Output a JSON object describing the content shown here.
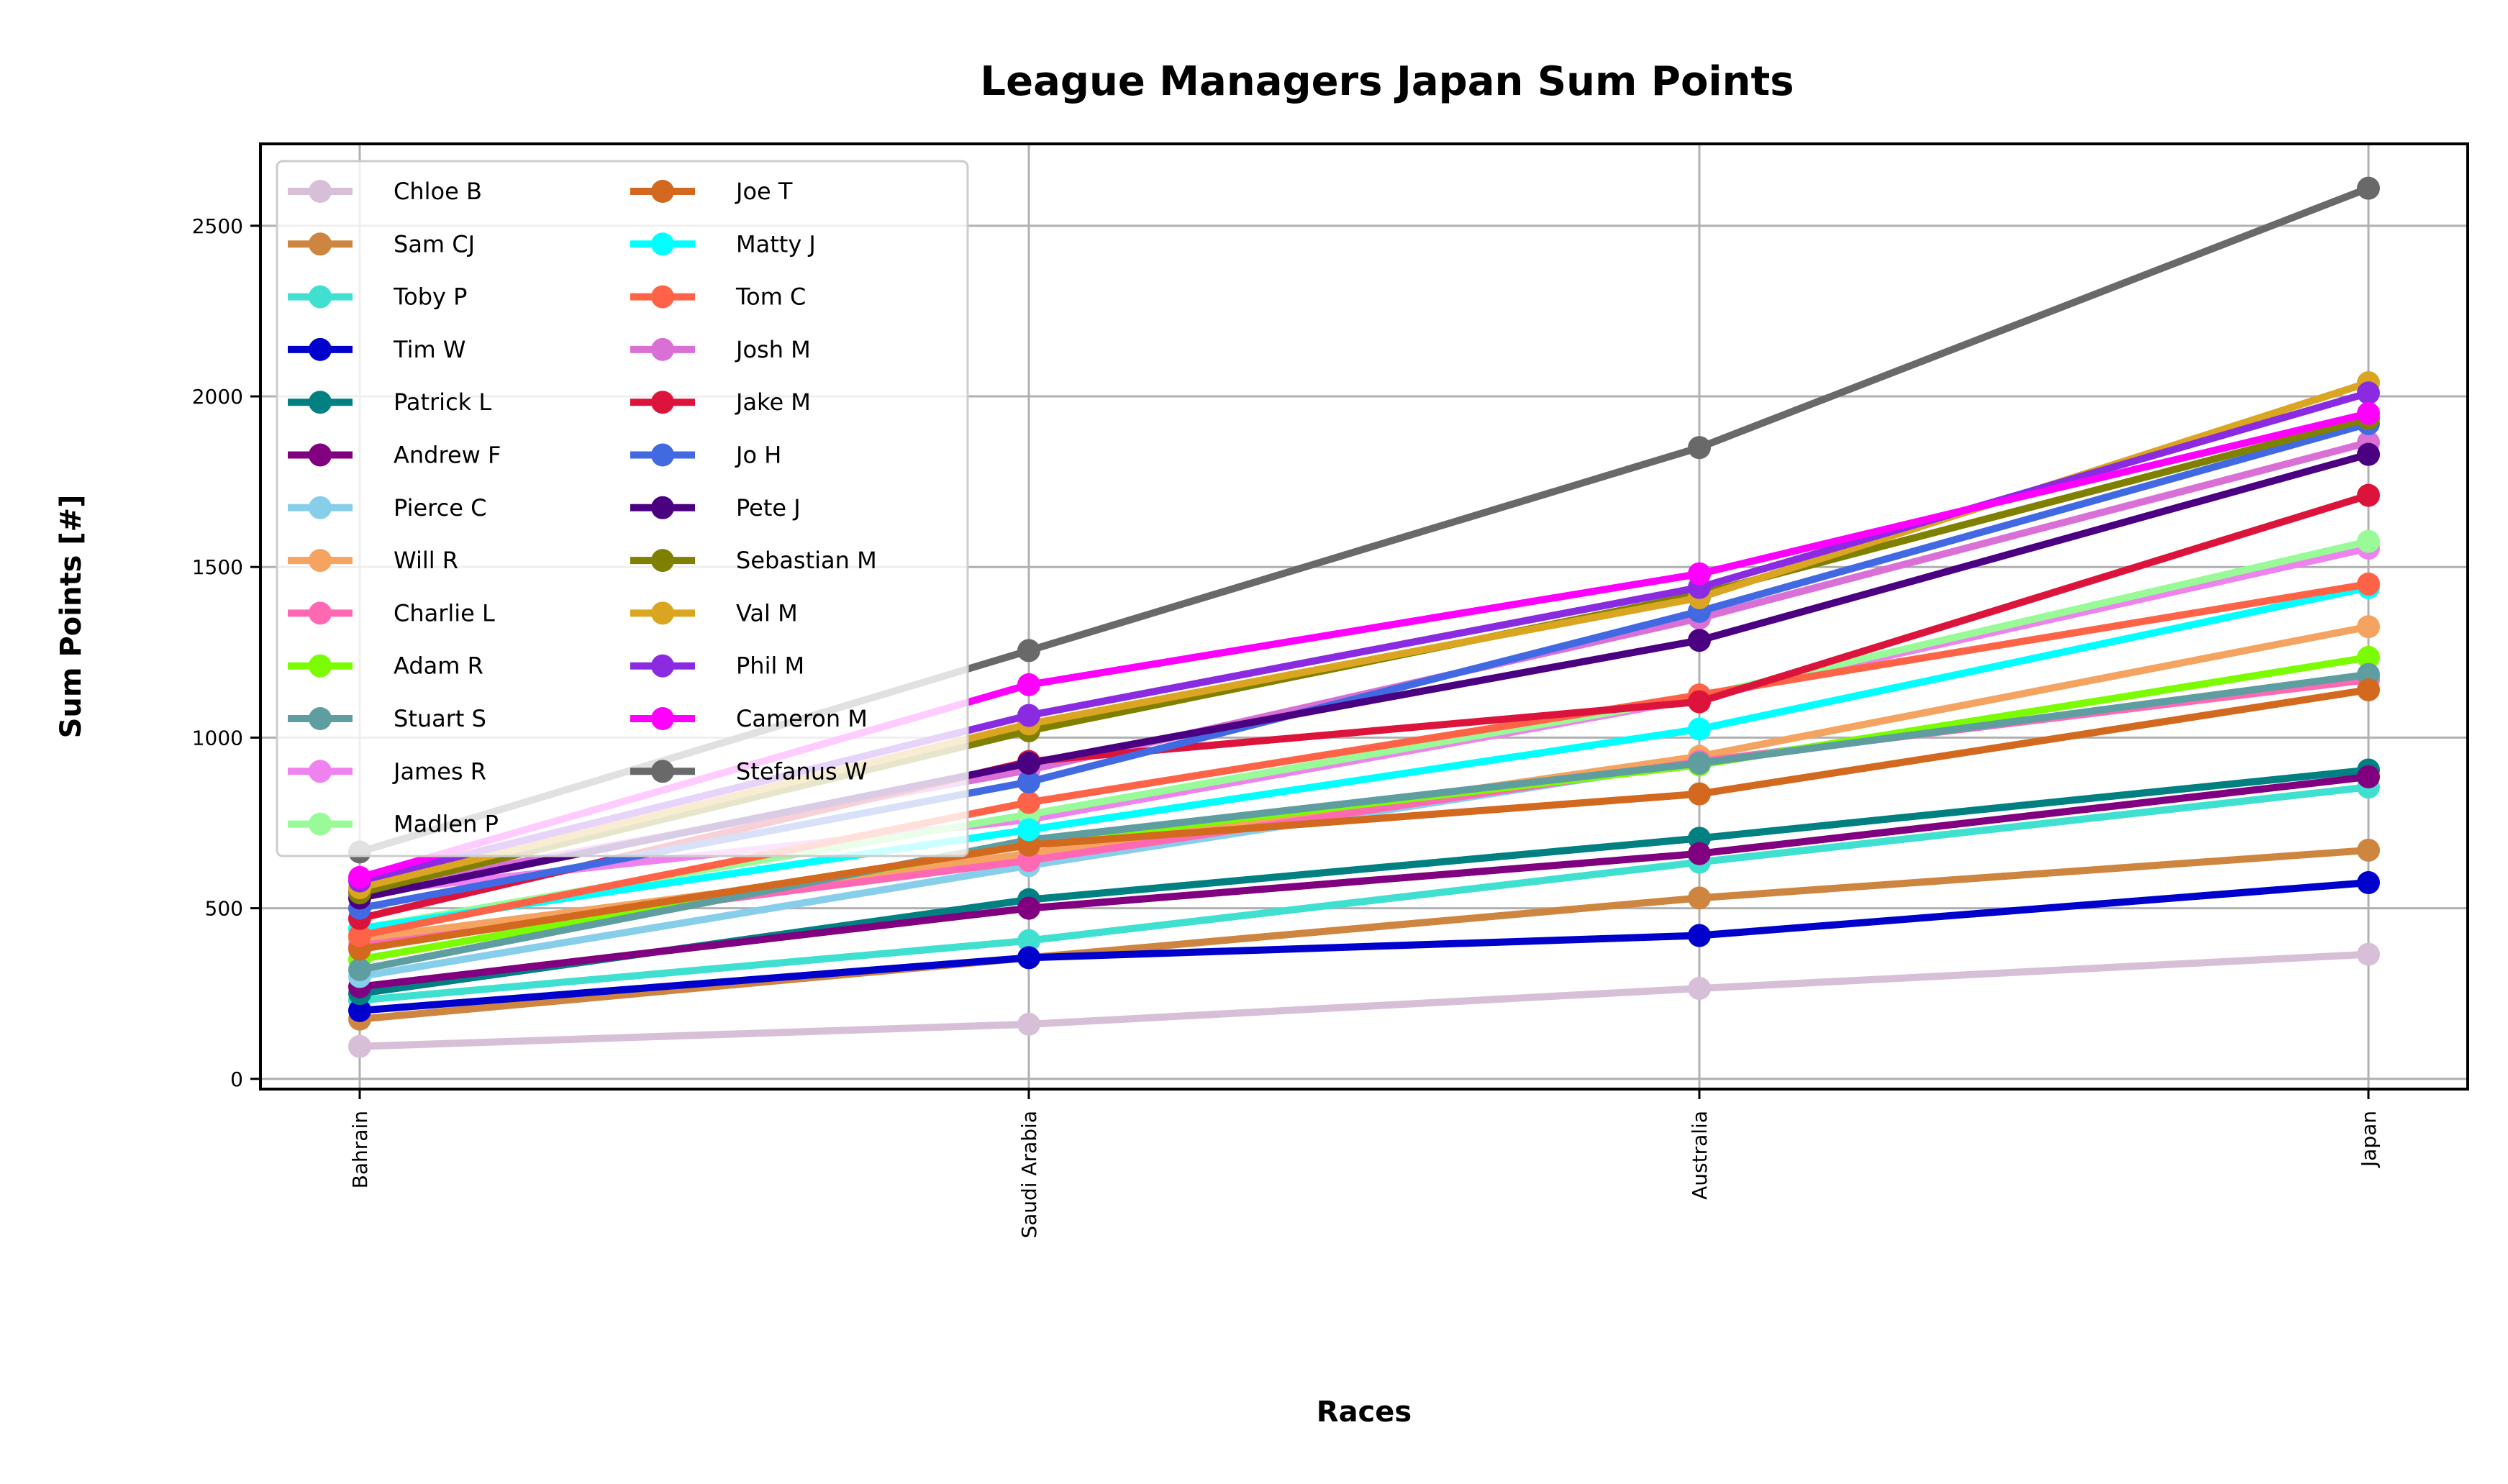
{
  "chart_data": {
    "type": "line",
    "title": "League Managers Japan Sum Points",
    "xlabel": "Races",
    "ylabel": "Sum Points [#]",
    "categories": [
      "Bahrain",
      "Saudi Arabia",
      "Australia",
      "Japan"
    ],
    "ylim": [
      -30,
      2740
    ],
    "yticks": [
      0,
      500,
      1000,
      1500,
      2000,
      2500
    ],
    "grid": true,
    "legend_position": "top-left",
    "legend_columns": 2,
    "series": [
      {
        "name": "Chloe B",
        "color": "#d8bfd8",
        "values": [
          95,
          160,
          265,
          365
        ]
      },
      {
        "name": "Sam CJ",
        "color": "#cd853f",
        "values": [
          175,
          355,
          530,
          670
        ]
      },
      {
        "name": "Toby P",
        "color": "#40e0d0",
        "values": [
          230,
          405,
          635,
          855
        ]
      },
      {
        "name": "Tim W",
        "color": "#0000cd",
        "values": [
          200,
          355,
          420,
          575
        ]
      },
      {
        "name": "Patrick L",
        "color": "#008080",
        "values": [
          250,
          525,
          705,
          905
        ]
      },
      {
        "name": "Andrew F",
        "color": "#800080",
        "values": [
          270,
          500,
          660,
          885
        ]
      },
      {
        "name": "Pierce C",
        "color": "#87ceeb",
        "values": [
          300,
          625,
          930,
          1180
        ]
      },
      {
        "name": "Will R",
        "color": "#f4a460",
        "values": [
          410,
          660,
          945,
          1325
        ]
      },
      {
        "name": "Charlie L",
        "color": "#ff69b4",
        "values": [
          390,
          640,
          930,
          1170
        ]
      },
      {
        "name": "Adam R",
        "color": "#7cfc00",
        "values": [
          350,
          690,
          920,
          1235
        ]
      },
      {
        "name": "Stuart S",
        "color": "#5f9ea0",
        "values": [
          320,
          700,
          925,
          1185
        ]
      },
      {
        "name": "James R",
        "color": "#ee82ee",
        "values": [
          545,
          760,
          1115,
          1555
        ]
      },
      {
        "name": "Madlen P",
        "color": "#98fb98",
        "values": [
          440,
          775,
          1120,
          1575
        ]
      },
      {
        "name": "Joe T",
        "color": "#d2691e",
        "values": [
          380,
          685,
          835,
          1140
        ]
      },
      {
        "name": "Matty J",
        "color": "#00ffff",
        "values": [
          440,
          730,
          1025,
          1440
        ]
      },
      {
        "name": "Tom C",
        "color": "#ff6347",
        "values": [
          420,
          810,
          1125,
          1450
        ]
      },
      {
        "name": "Josh M",
        "color": "#da70d6",
        "values": [
          550,
          905,
          1350,
          1865
        ]
      },
      {
        "name": "Jake M",
        "color": "#dc143c",
        "values": [
          470,
          930,
          1105,
          1710
        ]
      },
      {
        "name": "Jo H",
        "color": "#4169e1",
        "values": [
          500,
          870,
          1370,
          1920
        ]
      },
      {
        "name": "Pete J",
        "color": "#4b0082",
        "values": [
          530,
          925,
          1285,
          1830
        ]
      },
      {
        "name": "Sebastian M",
        "color": "#808000",
        "values": [
          545,
          1020,
          1420,
          1935
        ]
      },
      {
        "name": "Val M",
        "color": "#daa520",
        "values": [
          560,
          1040,
          1410,
          2040
        ]
      },
      {
        "name": "Phil M",
        "color": "#8a2be2",
        "values": [
          580,
          1065,
          1440,
          2010
        ]
      },
      {
        "name": "Cameron M",
        "color": "#ff00ff",
        "values": [
          590,
          1155,
          1480,
          1950
        ]
      },
      {
        "name": "Stefanus W",
        "color": "#696969",
        "values": [
          665,
          1255,
          1850,
          2610
        ]
      }
    ]
  }
}
